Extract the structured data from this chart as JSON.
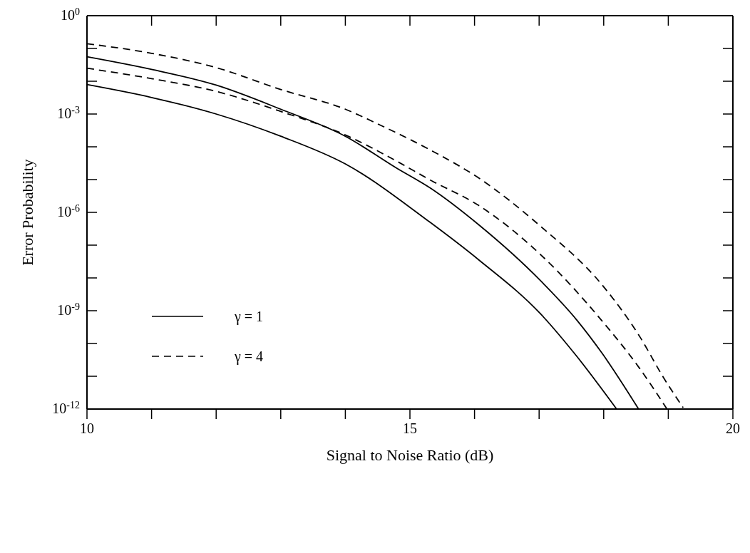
{
  "chart_data": {
    "type": "line",
    "xlabel": "Signal to Noise Ratio (dB)",
    "ylabel": "Error Probability",
    "log": "y",
    "xlim": [
      10,
      20
    ],
    "ylim": [
      1e-12,
      1
    ],
    "xticks": [
      10,
      {
        "value": 11,
        "label": null
      },
      {
        "value": 12,
        "label": null
      },
      {
        "value": 13,
        "label": null
      },
      {
        "value": 14,
        "label": null
      },
      15,
      {
        "value": 16,
        "label": null
      },
      {
        "value": 17,
        "label": null
      },
      {
        "value": 18,
        "label": null
      },
      {
        "value": 19,
        "label": null
      },
      20
    ],
    "yticks": [
      {
        "value": 1,
        "label": "10$^{0}$"
      },
      {
        "value": 0.1,
        "label": null
      },
      {
        "value": 0.01,
        "label": null
      },
      {
        "value": 0.001,
        "label": "10$^{-3}$"
      },
      {
        "value": 0.0001,
        "label": null
      },
      {
        "value": 1e-05,
        "label": null
      },
      {
        "value": 1e-06,
        "label": "10$^{-6}$"
      },
      {
        "value": 1e-07,
        "label": null
      },
      {
        "value": 1e-08,
        "label": null
      },
      {
        "value": 1e-09,
        "label": "10$^{-9}$"
      },
      {
        "value": 1e-10,
        "label": null
      },
      {
        "value": 1e-11,
        "label": null
      },
      {
        "value": 1e-12,
        "label": "10$^{-12}$"
      }
    ],
    "legend": "bottom left",
    "marker": "none",
    "series": [
      {
        "name": "γ = 1",
        "color": "#000000",
        "line_style": "solid",
        "x": [
          10,
          11,
          12,
          13,
          14,
          15.31,
          16.07,
          17.02,
          17.59,
          18.2
        ],
        "values": [
          0.0079,
          0.0032,
          0.001,
          0.00021,
          3e-05,
          5e-07,
          3.5e-08,
          8.1e-10,
          3.9e-11,
          1e-12
        ]
      },
      {
        "color": "#000000",
        "line_style": "solid",
        "x": [
          10,
          11,
          12,
          13,
          14,
          14.8,
          15.31,
          16.07,
          17.02,
          17.59,
          17.97,
          18.54
        ],
        "values": [
          0.056,
          0.023,
          0.0076,
          0.0014,
          0.00021,
          2.2e-05,
          5.6e-06,
          4.1e-07,
          8.3e-09,
          5e-10,
          5.2e-11,
          1e-12
        ]
      },
      {
        "name": "γ = 4",
        "color": "#000000",
        "line_style": "dashed",
        "x": [
          10,
          11,
          12,
          13,
          14,
          14.8,
          15.31,
          16.07,
          17.02,
          17.97,
          18.56,
          18.98
        ],
        "values": [
          0.025,
          0.012,
          0.0049,
          0.0012,
          0.00023,
          3.6e-05,
          9.8e-06,
          1.6e-06,
          5.2e-08,
          5e-10,
          1.7e-11,
          1e-12
        ]
      },
      {
        "color": "#000000",
        "line_style": "dashed",
        "x": [
          10,
          11,
          12,
          13,
          14,
          14.55,
          15.31,
          16.07,
          17.02,
          17.97,
          18.56,
          18.92,
          19.23
        ],
        "values": [
          0.14,
          0.071,
          0.026,
          0.0056,
          0.0014,
          0.00045,
          8.1e-05,
          1.1e-05,
          3.8e-07,
          6.3e-09,
          1.6e-10,
          9.5e-12,
          1.1e-12
        ]
      }
    ]
  }
}
